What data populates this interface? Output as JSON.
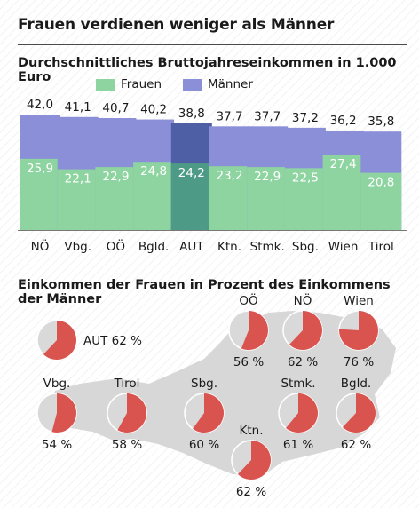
{
  "header": {
    "title": "Frauen verdienen weniger als Männer",
    "subtitle": "Durchschnittliches Bruttojahreseinkommen in 1.000 Euro",
    "subtitle2": "Einkommen der Frauen in Prozent des Einkommens der Männer"
  },
  "legend": [
    {
      "label": "Frauen",
      "color": "#8ed4a0"
    },
    {
      "label": "Männer",
      "color": "#8b8fd8"
    }
  ],
  "colors": {
    "frauen": "#8ed4a0",
    "maenner": "#8b8fd8",
    "frauen_aut": "#4d9a86",
    "maenner_aut": "#4f5fa6",
    "pie_fill": "#d9534f",
    "pie_rest": "#d9d9d9",
    "map": "#d7d7d7"
  },
  "chart_data": [
    {
      "type": "bar",
      "categories": [
        "NÖ",
        "Vbg.",
        "OÖ",
        "Bgld.",
        "AUT",
        "Ktn.",
        "Stmk.",
        "Sbg.",
        "Wien",
        "Tirol"
      ],
      "series": [
        {
          "name": "Männer",
          "values": [
            42.0,
            41.1,
            40.7,
            40.2,
            38.8,
            37.7,
            37.7,
            37.2,
            36.2,
            35.8
          ]
        },
        {
          "name": "Frauen",
          "values": [
            25.9,
            22.1,
            22.9,
            24.8,
            24.2,
            23.2,
            22.9,
            22.5,
            27.4,
            20.8
          ]
        }
      ],
      "labels_maenner": [
        "42,0",
        "41,1",
        "40,7",
        "40,2",
        "38,8",
        "37,7",
        "37,7",
        "37,2",
        "36,2",
        "35,8"
      ],
      "labels_frauen": [
        "25,9",
        "22,1",
        "22,9",
        "24,8",
        "24,2",
        "23,2",
        "22,9",
        "22,5",
        "27,4",
        "20,8"
      ],
      "title": "Durchschnittliches Bruttojahreseinkommen in 1.000 Euro",
      "ylim": [
        0,
        42
      ]
    },
    {
      "type": "pie",
      "items": [
        {
          "label": "AUT 62 %",
          "value": 62
        },
        {
          "label": "OÖ",
          "value_label": "56 %",
          "value": 56
        },
        {
          "label": "NÖ",
          "value_label": "62 %",
          "value": 62
        },
        {
          "label": "Wien",
          "value_label": "76 %",
          "value": 76
        },
        {
          "label": "Vbg.",
          "value_label": "54 %",
          "value": 54
        },
        {
          "label": "Tirol",
          "value_label": "58 %",
          "value": 58
        },
        {
          "label": "Sbg.",
          "value_label": "60 %",
          "value": 60
        },
        {
          "label": "Stmk.",
          "value_label": "61 %",
          "value": 61
        },
        {
          "label": "Bgld.",
          "value_label": "62 %",
          "value": 62
        },
        {
          "label": "Ktn.",
          "value_label": "62 %",
          "value": 62
        }
      ],
      "title": "Einkommen der Frauen in Prozent des Einkommens der Männer"
    }
  ]
}
